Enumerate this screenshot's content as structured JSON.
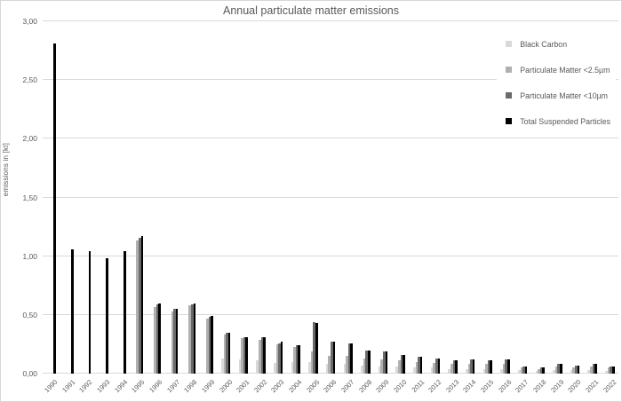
{
  "chart_title": "Annual particulate matter emissions",
  "chart_data": {
    "type": "bar",
    "title": "Annual particulate matter emissions",
    "xlabel": "",
    "ylabel": "emissions in [kt]",
    "ylim": [
      0,
      3.0
    ],
    "ytick_step": 0.5,
    "ytick_labels": [
      "0,00",
      "0,50",
      "1,00",
      "1,50",
      "2,00",
      "2,50",
      "3,00"
    ],
    "decimal_separator": ",",
    "grid": true,
    "gridline_color": "#d9d9d9",
    "legend_position": "top-right",
    "categories": [
      "1990",
      "1991",
      "1992",
      "1993",
      "1994",
      "1995",
      "1996",
      "1997",
      "1998",
      "1999",
      "2000",
      "2001",
      "2002",
      "2003",
      "2004",
      "2005",
      "2006",
      "2007",
      "2008",
      "2009",
      "2010",
      "2011",
      "2012",
      "2013",
      "2014",
      "2015",
      "2016",
      "2017",
      "2018",
      "2019",
      "2020",
      "2021",
      "2022"
    ],
    "series": [
      {
        "name": "Black Carbon",
        "color": "#d9d9d9",
        "values": [
          null,
          null,
          null,
          null,
          null,
          null,
          null,
          null,
          null,
          null,
          0.13,
          0.12,
          0.11,
          0.09,
          0.1,
          0.1,
          0.08,
          0.08,
          0.07,
          0.06,
          0.06,
          0.05,
          0.05,
          0.04,
          0.04,
          0.04,
          0.04,
          0.03,
          0.02,
          0.03,
          0.03,
          0.03,
          0.02
        ]
      },
      {
        "name": "Particulate Matter <2.5µm",
        "color": "#b0b0b0",
        "values": [
          null,
          null,
          null,
          null,
          null,
          1.13,
          0.57,
          0.53,
          0.58,
          0.47,
          0.33,
          0.3,
          0.29,
          0.25,
          0.23,
          0.19,
          0.15,
          0.15,
          0.13,
          0.12,
          0.11,
          0.1,
          0.09,
          0.08,
          0.08,
          0.08,
          0.08,
          0.05,
          0.04,
          0.06,
          0.05,
          0.06,
          0.05
        ]
      },
      {
        "name": "Particulate Matter <10µm",
        "color": "#6a6a6a",
        "values": [
          null,
          null,
          null,
          null,
          null,
          1.16,
          0.59,
          0.55,
          0.59,
          0.48,
          0.35,
          0.31,
          0.31,
          0.26,
          0.24,
          0.44,
          0.27,
          0.26,
          0.2,
          0.19,
          0.16,
          0.14,
          0.13,
          0.11,
          0.12,
          0.11,
          0.12,
          0.06,
          0.05,
          0.08,
          0.07,
          0.08,
          0.06
        ]
      },
      {
        "name": "Total Suspended Particles",
        "color": "#000000",
        "values": [
          2.81,
          1.06,
          1.04,
          0.98,
          1.04,
          1.17,
          0.6,
          0.55,
          0.6,
          0.49,
          0.35,
          0.31,
          0.31,
          0.27,
          0.24,
          0.43,
          0.27,
          0.26,
          0.2,
          0.19,
          0.16,
          0.14,
          0.13,
          0.11,
          0.12,
          0.11,
          0.12,
          0.06,
          0.05,
          0.08,
          0.07,
          0.08,
          0.06
        ]
      }
    ],
    "text_color": "#595959"
  }
}
